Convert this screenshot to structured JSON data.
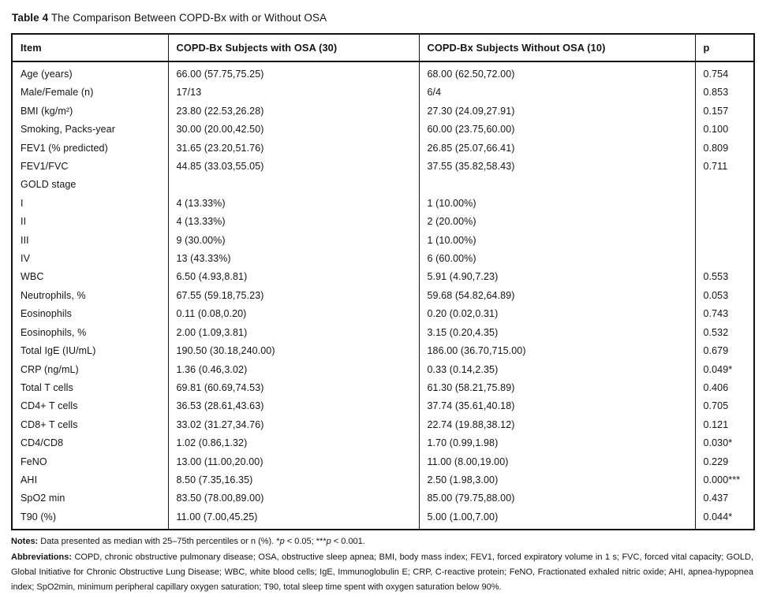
{
  "title": {
    "label": "Table 4",
    "text": "The Comparison Between COPD-Bx with or Without OSA"
  },
  "table": {
    "columns": [
      "Item",
      "COPD-Bx Subjects with OSA (30)",
      "COPD-Bx Subjects Without OSA (10)",
      "p"
    ],
    "rows": [
      {
        "item": "Age (years)",
        "osa": "66.00 (57.75,75.25)",
        "no_osa": "68.00 (62.50,72.00)",
        "p": "0.754"
      },
      {
        "item": "Male/Female (n)",
        "osa": "17/13",
        "no_osa": "6/4",
        "p": "0.853"
      },
      {
        "item": "BMI (kg/m²)",
        "osa": "23.80 (22.53,26.28)",
        "no_osa": "27.30 (24.09,27.91)",
        "p": "0.157"
      },
      {
        "item": "Smoking, Packs-year",
        "osa": "30.00 (20.00,42.50)",
        "no_osa": "60.00 (23.75,60.00)",
        "p": "0.100"
      },
      {
        "item": "FEV1 (% predicted)",
        "osa": "31.65 (23.20,51.76)",
        "no_osa": "26.85 (25.07,66.41)",
        "p": "0.809"
      },
      {
        "item": "FEV1/FVC",
        "osa": "44.85 (33.03,55.05)",
        "no_osa": "37.55 (35.82,58.43)",
        "p": "0.711"
      },
      {
        "item": "GOLD stage",
        "osa": "",
        "no_osa": "",
        "p": ""
      },
      {
        "item": "I",
        "osa": "4 (13.33%)",
        "no_osa": "1 (10.00%)",
        "p": ""
      },
      {
        "item": "II",
        "osa": "4 (13.33%)",
        "no_osa": "2 (20.00%)",
        "p": ""
      },
      {
        "item": "III",
        "osa": "9 (30.00%)",
        "no_osa": "1 (10.00%)",
        "p": ""
      },
      {
        "item": "IV",
        "osa": "13 (43.33%)",
        "no_osa": "6 (60.00%)",
        "p": ""
      },
      {
        "item": "WBC",
        "osa": "6.50 (4.93,8.81)",
        "no_osa": "5.91 (4.90,7.23)",
        "p": "0.553"
      },
      {
        "item": "Neutrophils, %",
        "osa": "67.55 (59.18,75.23)",
        "no_osa": "59.68 (54.82,64.89)",
        "p": "0.053"
      },
      {
        "item": "Eosinophils",
        "osa": "0.11 (0.08,0.20)",
        "no_osa": "0.20 (0.02,0.31)",
        "p": "0.743"
      },
      {
        "item": "Eosinophils, %",
        "osa": "2.00 (1.09,3.81)",
        "no_osa": "3.15 (0.20,4.35)",
        "p": "0.532"
      },
      {
        "item": "Total IgE (IU/mL)",
        "osa": "190.50 (30.18,240.00)",
        "no_osa": "186.00 (36.70,715.00)",
        "p": "0.679"
      },
      {
        "item": "CRP (ng/mL)",
        "osa": "1.36 (0.46,3.02)",
        "no_osa": "0.33 (0.14,2.35)",
        "p": "0.049*"
      },
      {
        "item": "Total T cells",
        "osa": "69.81 (60.69,74.53)",
        "no_osa": "61.30 (58.21,75.89)",
        "p": "0.406"
      },
      {
        "item": "CD4+ T cells",
        "osa": "36.53 (28.61,43.63)",
        "no_osa": "37.74 (35.61,40.18)",
        "p": "0.705"
      },
      {
        "item": "CD8+ T cells",
        "osa": "33.02 (31.27,34.76)",
        "no_osa": "22.74 (19.88,38.12)",
        "p": "0.121"
      },
      {
        "item": "CD4/CD8",
        "osa": "1.02 (0.86,1.32)",
        "no_osa": "1.70 (0.99,1.98)",
        "p": "0.030*"
      },
      {
        "item": "FeNO",
        "osa": "13.00 (11.00,20.00)",
        "no_osa": "11.00 (8.00,19.00)",
        "p": "0.229"
      },
      {
        "item": "AHI",
        "osa": "8.50 (7.35,16.35)",
        "no_osa": "2.50 (1.98,3.00)",
        "p": "0.000***"
      },
      {
        "item": "SpO2 min",
        "osa": "83.50 (78.00,89.00)",
        "no_osa": "85.00 (79.75,88.00)",
        "p": "0.437"
      },
      {
        "item": "T90 (%)",
        "osa": "11.00 (7.00,45.25)",
        "no_osa": "5.00 (1.00,7.00)",
        "p": "0.044*"
      }
    ]
  },
  "notes": {
    "label": "Notes:",
    "part1": " Data presented as median with 25–75th percentiles or n (%). *",
    "p1": "p",
    "part2": " < 0.05; ***",
    "p2": "p",
    "part3": " < 0.001."
  },
  "abbreviations": {
    "label": "Abbreviations:",
    "text": " COPD, chronic obstructive pulmonary disease; OSA, obstructive sleep apnea; BMI, body mass index; FEV1, forced expiratory volume in 1 s; FVC, forced vital capacity; GOLD, Global Initiative for Chronic Obstructive Lung Disease; WBC, white blood cells; IgE, Immunoglobulin E; CRP, C-reactive protein; FeNO, Fractionated exhaled nitric oxide; AHI, apnea-hypopnea index; SpO2min, minimum peripheral capillary oxygen saturation; T90, total sleep time spent with oxygen saturation below 90%."
  },
  "colors": {
    "text": "#141414",
    "border": "#141414",
    "background": "#ffffff"
  }
}
